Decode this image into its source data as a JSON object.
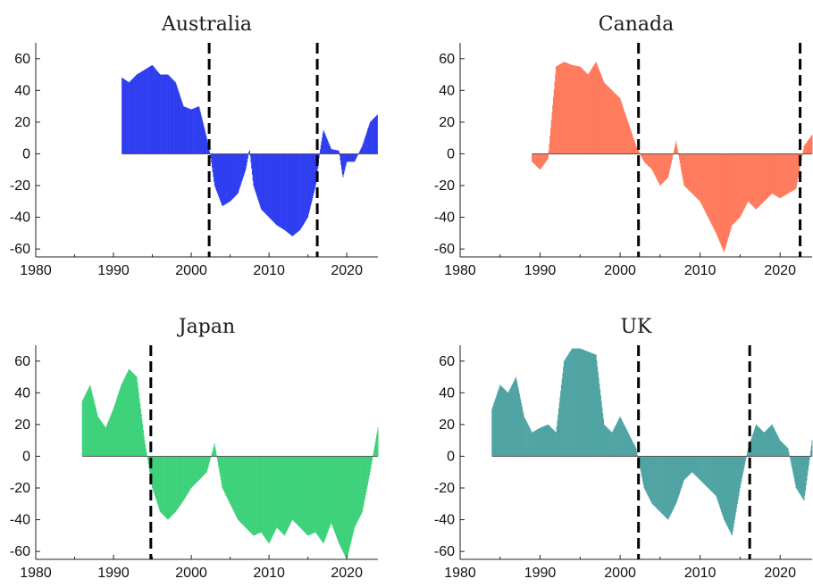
{
  "chart_data": [
    {
      "type": "bar",
      "title": "Australia",
      "color": "#2e3df0",
      "xlim": [
        1980,
        2024
      ],
      "ylim": [
        -65,
        70
      ],
      "xticks": [
        1980,
        1990,
        2000,
        2010,
        2020
      ],
      "yticks": [
        60,
        40,
        20,
        0,
        -20,
        -40,
        -60
      ],
      "vlines": [
        2002.3,
        2016.2
      ],
      "x": [
        1991.1,
        1992,
        1993,
        1994,
        1995,
        1996,
        1997,
        1998,
        1999,
        2000,
        2001,
        2002,
        2002.5,
        2003,
        2004,
        2005,
        2006,
        2007,
        2007.5,
        2008,
        2009,
        2010,
        2011,
        2012,
        2013,
        2014,
        2015,
        2016,
        2016.5,
        2017,
        2018,
        2019,
        2019.5,
        2020,
        2021,
        2022,
        2023,
        2024
      ],
      "y": [
        48,
        45,
        50,
        53,
        56,
        50,
        50,
        45,
        30,
        28,
        30,
        10,
        -2,
        -20,
        -33,
        -30,
        -25,
        -10,
        3,
        -20,
        -35,
        -40,
        -45,
        -48,
        -52,
        -48,
        -40,
        -20,
        0,
        15,
        3,
        2,
        -15,
        -5,
        -5,
        5,
        20,
        25
      ]
    },
    {
      "type": "bar",
      "title": "Canada",
      "color": "#ff7a5c",
      "xlim": [
        1980,
        2024
      ],
      "ylim": [
        -65,
        70
      ],
      "xticks": [
        1980,
        1990,
        2000,
        2010,
        2020
      ],
      "yticks": [
        60,
        40,
        20,
        0,
        -20,
        -40,
        -60
      ],
      "vlines": [
        2002.3,
        2022.5
      ],
      "x": [
        1989,
        1990,
        1991,
        1992,
        1993,
        1994,
        1995,
        1996,
        1997,
        1998,
        1999,
        2000,
        2001,
        2002,
        2003,
        2004,
        2005,
        2006,
        2007,
        2008,
        2009,
        2010,
        2011,
        2012,
        2013,
        2014,
        2015,
        2016,
        2017,
        2018,
        2019,
        2020,
        2021,
        2022,
        2023,
        2024
      ],
      "y": [
        -5,
        -10,
        -3,
        55,
        58,
        56,
        55,
        50,
        58,
        45,
        40,
        35,
        20,
        5,
        -5,
        -10,
        -20,
        -15,
        8,
        -20,
        -25,
        -30,
        -40,
        -50,
        -62,
        -45,
        -40,
        -30,
        -35,
        -30,
        -25,
        -28,
        -25,
        -22,
        5,
        12
      ]
    },
    {
      "type": "bar",
      "title": "Japan",
      "color": "#3dd17a",
      "xlim": [
        1980,
        2024
      ],
      "ylim": [
        -65,
        70
      ],
      "xticks": [
        1980,
        1990,
        2000,
        2010,
        2020
      ],
      "yticks": [
        60,
        40,
        20,
        0,
        -20,
        -40,
        -60
      ],
      "vlines": [
        1994.8
      ],
      "x": [
        1986,
        1987,
        1988,
        1989,
        1990,
        1991,
        1992,
        1993,
        1994,
        1995,
        1996,
        1997,
        1998,
        1999,
        2000,
        2001,
        2002,
        2003,
        2004,
        2005,
        2006,
        2007,
        2008,
        2009,
        2010,
        2011,
        2012,
        2013,
        2014,
        2015,
        2016,
        2017,
        2018,
        2019,
        2020,
        2021,
        2022,
        2023,
        2024
      ],
      "y": [
        35,
        45,
        25,
        18,
        30,
        45,
        55,
        50,
        10,
        -20,
        -35,
        -40,
        -35,
        -28,
        -20,
        -15,
        -10,
        8,
        -20,
        -30,
        -40,
        -45,
        -50,
        -48,
        -55,
        -45,
        -50,
        -40,
        -45,
        -50,
        -48,
        -55,
        -42,
        -55,
        -65,
        -45,
        -35,
        -10,
        18
      ]
    },
    {
      "type": "bar",
      "title": "UK",
      "color": "#4fa3a3",
      "xlim": [
        1980,
        2024
      ],
      "ylim": [
        -65,
        70
      ],
      "xticks": [
        1980,
        1990,
        2000,
        2010,
        2020
      ],
      "yticks": [
        60,
        40,
        20,
        0,
        -20,
        -40,
        -60
      ],
      "vlines": [
        2002.3,
        2016.2
      ],
      "x": [
        1984,
        1985,
        1986,
        1987,
        1988,
        1989,
        1990,
        1991,
        1992,
        1993,
        1994,
        1995,
        1996,
        1997,
        1998,
        1999,
        2000,
        2001,
        2002,
        2003,
        2004,
        2005,
        2006,
        2007,
        2008,
        2009,
        2010,
        2011,
        2012,
        2013,
        2014,
        2015,
        2016,
        2017,
        2018,
        2019,
        2020,
        2021,
        2022,
        2023,
        2024
      ],
      "y": [
        30,
        45,
        40,
        50,
        25,
        15,
        18,
        20,
        15,
        60,
        68,
        68,
        66,
        64,
        20,
        15,
        25,
        15,
        5,
        -20,
        -30,
        -35,
        -40,
        -30,
        -15,
        -10,
        -15,
        -20,
        -25,
        -40,
        -50,
        -20,
        5,
        20,
        15,
        20,
        10,
        5,
        -20,
        -28,
        10
      ]
    }
  ]
}
